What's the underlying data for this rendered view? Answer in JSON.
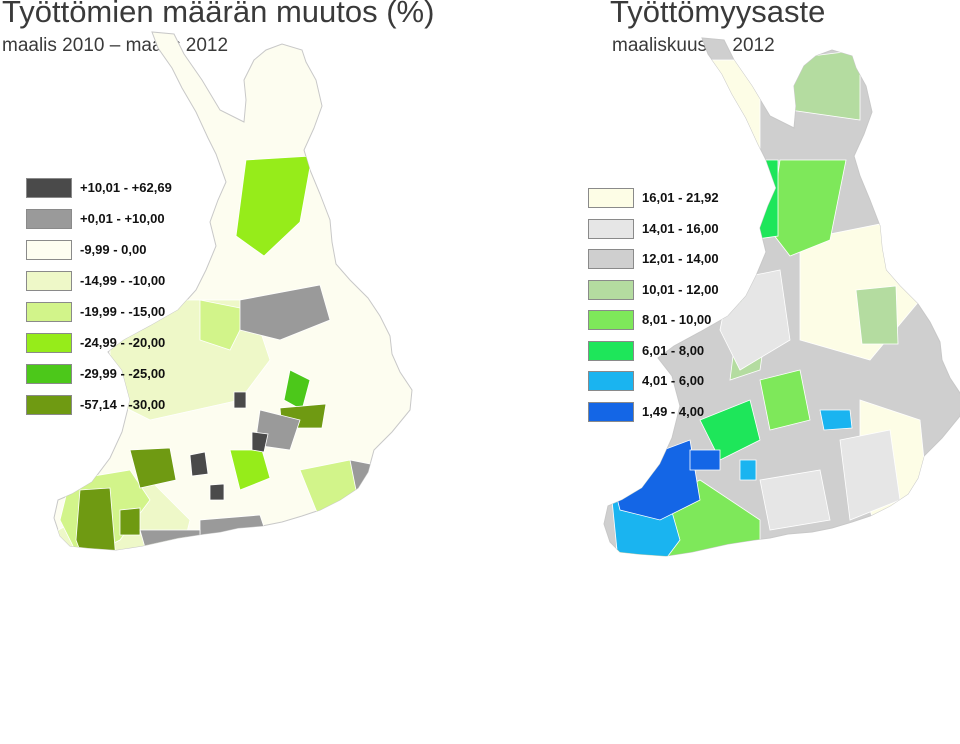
{
  "left_map": {
    "title": "Työttömien määrän muutos (%)",
    "subtitle": "maalis 2010 – maalis 2012",
    "legend": [
      {
        "label": "+10,01 - +62,69",
        "color": "#4a4a4a"
      },
      {
        "label": "+0,01 - +10,00",
        "color": "#9a9a9a"
      },
      {
        "label": "-9,99 - 0,00",
        "color": "#fdfdf0"
      },
      {
        "label": "-14,99 - -10,00",
        "color": "#eef8c8"
      },
      {
        "label": "-19,99 - -15,00",
        "color": "#d2f48a"
      },
      {
        "label": "-24,99 - -20,00",
        "color": "#96ec1a"
      },
      {
        "label": "-29,99 - -25,00",
        "color": "#4cc81a"
      },
      {
        "label": "-57,14 - -30,00",
        "color": "#6f9a12"
      }
    ]
  },
  "right_map": {
    "title": "Työttömyysaste",
    "subtitle": "maaliskuussa 2012",
    "legend": [
      {
        "label": "16,01 - 21,92",
        "color": "#fdfde6"
      },
      {
        "label": "14,01 - 16,00",
        "color": "#e6e6e6"
      },
      {
        "label": "12,01 - 14,00",
        "color": "#cfcfcf"
      },
      {
        "label": "10,01 - 12,00",
        "color": "#b4dca0"
      },
      {
        "label": "8,01 - 10,00",
        "color": "#7ee85a"
      },
      {
        "label": "6,01 - 8,00",
        "color": "#1ee65a"
      },
      {
        "label": "4,01 - 6,00",
        "color": "#1ab4f0"
      },
      {
        "label": "1,49 - 4,00",
        "color": "#1466e6"
      }
    ]
  }
}
